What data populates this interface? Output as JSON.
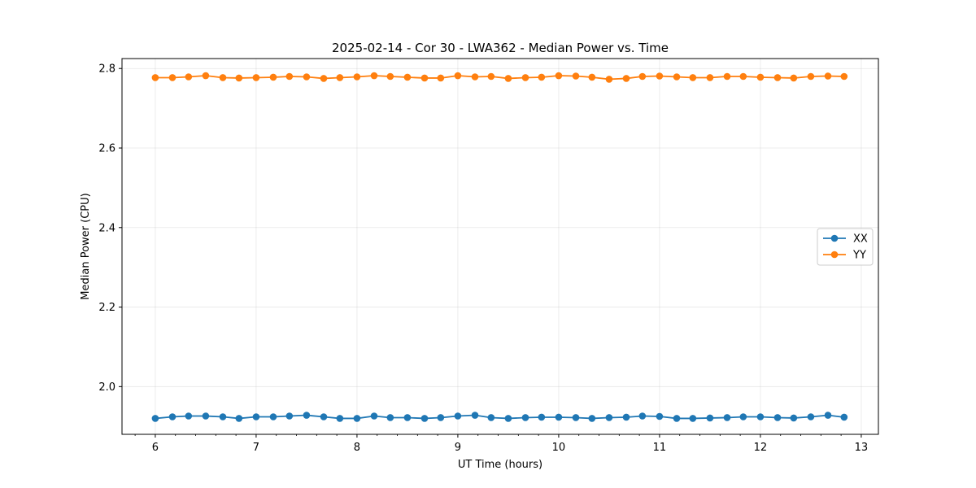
{
  "chart_data": {
    "type": "line",
    "title": "2025-02-14 - Cor 30 - LWA362 - Median Power vs. Time",
    "xlabel": "UT Time (hours)",
    "ylabel": "Median Power (CPU)",
    "xlim": [
      5.67,
      13.17
    ],
    "ylim": [
      1.88,
      2.825
    ],
    "xticks": [
      6,
      7,
      8,
      9,
      10,
      11,
      12,
      13
    ],
    "yticks": [
      2.0,
      2.2,
      2.4,
      2.6,
      2.8
    ],
    "ytick_labels": [
      "2.0",
      "2.2",
      "2.4",
      "2.6",
      "2.8"
    ],
    "grid": true,
    "legend_position": "center-right",
    "x": [
      6.0,
      6.17,
      6.33,
      6.5,
      6.67,
      6.83,
      7.0,
      7.17,
      7.33,
      7.5,
      7.67,
      7.83,
      8.0,
      8.17,
      8.33,
      8.5,
      8.67,
      8.83,
      9.0,
      9.17,
      9.33,
      9.5,
      9.67,
      9.83,
      10.0,
      10.17,
      10.33,
      10.5,
      10.67,
      10.83,
      11.0,
      11.17,
      11.33,
      11.5,
      11.67,
      11.83,
      12.0,
      12.17,
      12.33,
      12.5,
      12.67,
      12.83
    ],
    "series": [
      {
        "name": "XX",
        "color": "#1f77b4",
        "values": [
          1.92,
          1.924,
          1.926,
          1.926,
          1.924,
          1.92,
          1.924,
          1.924,
          1.926,
          1.928,
          1.924,
          1.92,
          1.92,
          1.926,
          1.922,
          1.922,
          1.92,
          1.922,
          1.926,
          1.928,
          1.922,
          1.92,
          1.922,
          1.923,
          1.923,
          1.922,
          1.92,
          1.922,
          1.923,
          1.926,
          1.925,
          1.92,
          1.92,
          1.921,
          1.922,
          1.924,
          1.924,
          1.922,
          1.921,
          1.924,
          1.928,
          1.923
        ]
      },
      {
        "name": "YY",
        "color": "#ff7f0e",
        "values": [
          2.777,
          2.777,
          2.779,
          2.782,
          2.777,
          2.776,
          2.777,
          2.778,
          2.78,
          2.779,
          2.775,
          2.777,
          2.779,
          2.782,
          2.78,
          2.778,
          2.776,
          2.776,
          2.782,
          2.779,
          2.78,
          2.775,
          2.777,
          2.778,
          2.782,
          2.781,
          2.778,
          2.773,
          2.775,
          2.78,
          2.781,
          2.779,
          2.777,
          2.777,
          2.78,
          2.78,
          2.778,
          2.777,
          2.776,
          2.78,
          2.781,
          2.78
        ]
      }
    ]
  }
}
